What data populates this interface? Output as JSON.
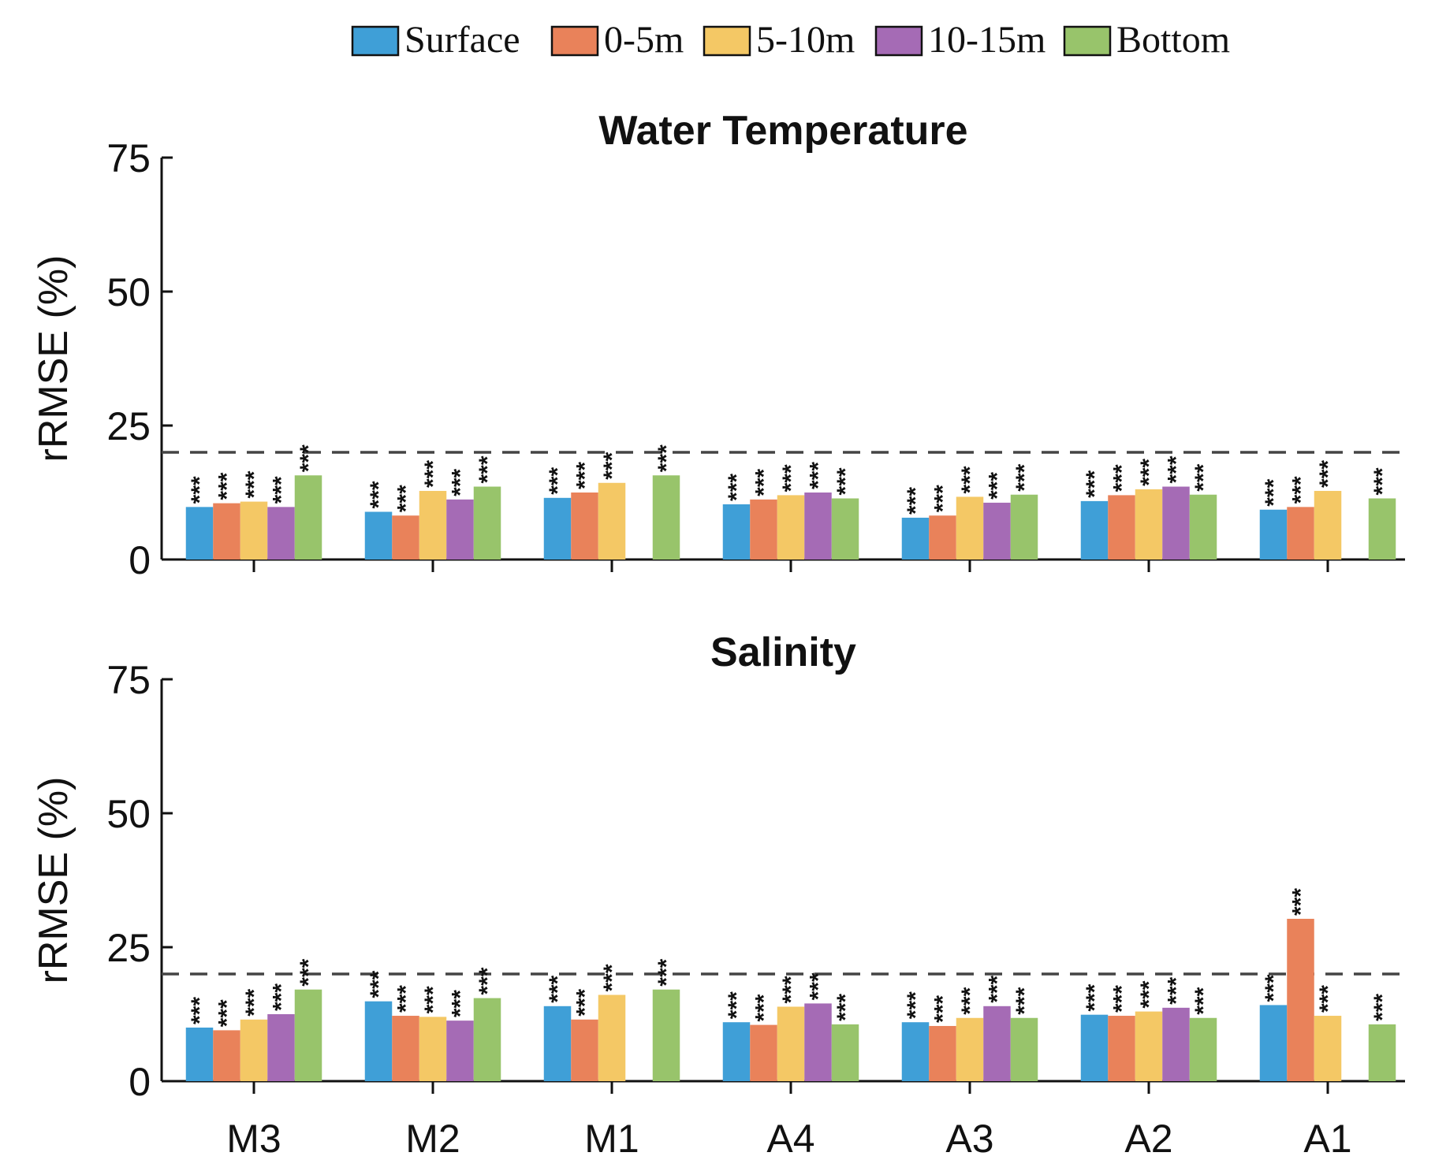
{
  "legend": [
    {
      "name": "Surface",
      "color": "#3f9fd7"
    },
    {
      "name": "0-5m",
      "color": "#e9825a"
    },
    {
      "name": "5-10m",
      "color": "#f4c865"
    },
    {
      "name": "10-15m",
      "color": "#a56bb5"
    },
    {
      "name": "Bottom",
      "color": "#98c46b"
    }
  ],
  "chart_data": [
    {
      "type": "bar",
      "title": "Water Temperature",
      "ylabel": "rRMSE (%)",
      "xlabel": "",
      "ylim": [
        0,
        75
      ],
      "yticks": [
        0,
        25,
        50,
        75
      ],
      "reference_line": 20,
      "significance_label": "***",
      "categories": [
        "M3",
        "M2",
        "M1",
        "A4",
        "A3",
        "A2",
        "A1"
      ],
      "series": [
        {
          "name": "Surface",
          "values": [
            9.8,
            8.9,
            11.5,
            10.3,
            7.8,
            10.9,
            9.3
          ]
        },
        {
          "name": "0-5m",
          "values": [
            10.5,
            8.2,
            12.5,
            11.2,
            8.2,
            12.0,
            9.8
          ]
        },
        {
          "name": "5-10m",
          "values": [
            10.8,
            12.8,
            14.3,
            12.0,
            11.7,
            13.1,
            12.8
          ]
        },
        {
          "name": "10-15m",
          "values": [
            9.8,
            11.2,
            null,
            12.5,
            10.6,
            13.6,
            null
          ]
        },
        {
          "name": "Bottom",
          "values": [
            15.7,
            13.6,
            15.7,
            11.4,
            12.1,
            12.1,
            11.4
          ]
        }
      ]
    },
    {
      "type": "bar",
      "title": "Salinity",
      "ylabel": "rRMSE (%)",
      "xlabel": "",
      "ylim": [
        0,
        75
      ],
      "yticks": [
        0,
        25,
        50,
        75
      ],
      "reference_line": 20,
      "significance_label": "***",
      "categories": [
        "M3",
        "M2",
        "M1",
        "A4",
        "A3",
        "A2",
        "A1"
      ],
      "series": [
        {
          "name": "Surface",
          "values": [
            10.0,
            14.9,
            14.0,
            11.0,
            11.0,
            12.4,
            14.2
          ]
        },
        {
          "name": "0-5m",
          "values": [
            9.5,
            12.2,
            11.5,
            10.5,
            10.3,
            12.2,
            30.3
          ]
        },
        {
          "name": "5-10m",
          "values": [
            11.5,
            12.0,
            16.1,
            13.9,
            11.8,
            13.0,
            12.2
          ]
        },
        {
          "name": "10-15m",
          "values": [
            12.5,
            11.3,
            null,
            14.5,
            14.0,
            13.7,
            null
          ]
        },
        {
          "name": "Bottom",
          "values": [
            17.1,
            15.5,
            17.1,
            10.6,
            11.8,
            11.8,
            10.6
          ]
        }
      ]
    }
  ]
}
